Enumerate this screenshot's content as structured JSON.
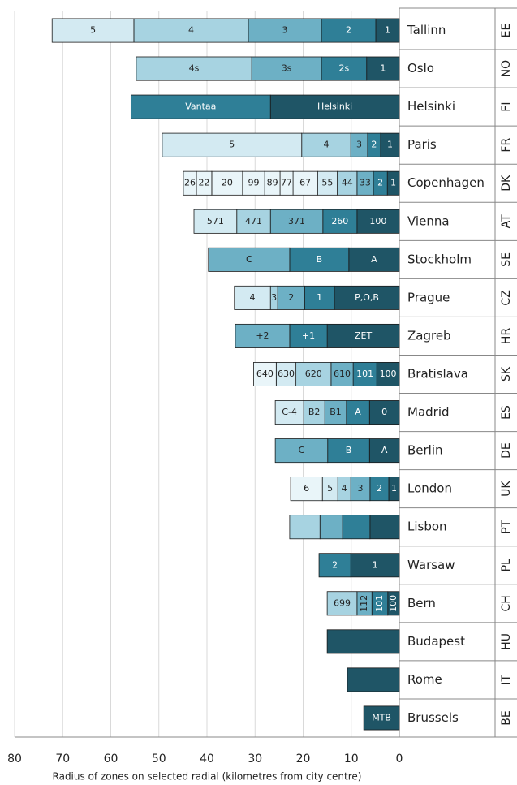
{
  "chart_data": {
    "type": "bar",
    "orientation": "horizontal-left",
    "xlabel": "Radius of zones on selected radial (kilometres from city centre)",
    "xlim": [
      0,
      80
    ],
    "xticks": [
      0,
      10,
      20,
      30,
      40,
      50,
      60,
      70,
      80
    ],
    "grid": true,
    "colors": [
      "#1f5566",
      "#2f7f97",
      "#6db0c5",
      "#a7d3e1",
      "#d3eaf2",
      "#e9f5f9"
    ],
    "rows": [
      {
        "name": "Tallinn",
        "code": "EE",
        "segments": [
          {
            "label": "1",
            "value": 4.9
          },
          {
            "label": "2",
            "value": 11.3
          },
          {
            "label": "3",
            "value": 15.2
          },
          {
            "label": "4",
            "value": 23.8
          },
          {
            "label": "5",
            "value": 17
          }
        ]
      },
      {
        "name": "Oslo",
        "code": "NO",
        "segments": [
          {
            "label": "1",
            "value": 6.8
          },
          {
            "label": "2s",
            "value": 9.4
          },
          {
            "label": "3s",
            "value": 14.5
          },
          {
            "label": "4s",
            "value": 24
          }
        ]
      },
      {
        "name": "Helsinki",
        "code": "FI",
        "segments": [
          {
            "label": "Helsinki",
            "value": 26.8
          },
          {
            "label": "Vantaa",
            "value": 29
          }
        ]
      },
      {
        "name": "Paris",
        "code": "FR",
        "segments": [
          {
            "label": "1",
            "value": 3.9
          },
          {
            "label": "2",
            "value": 2.7
          },
          {
            "label": "3",
            "value": 3.5
          },
          {
            "label": "4",
            "value": 10.2
          },
          {
            "label": "5",
            "value": 29
          }
        ]
      },
      {
        "name": "Copenhagen",
        "code": "DK",
        "segments": [
          {
            "label": "1",
            "value": 2.5
          },
          {
            "label": "2",
            "value": 2.9
          },
          {
            "label": "33",
            "value": 3.4
          },
          {
            "label": "44",
            "value": 4.1
          },
          {
            "label": "55",
            "value": 4.1
          },
          {
            "label": "67",
            "value": 5.1
          },
          {
            "label": "77",
            "value": 2.7
          },
          {
            "label": "89",
            "value": 3.2
          },
          {
            "label": "99",
            "value": 4.6
          },
          {
            "label": "20",
            "value": 6.4
          },
          {
            "label": "22",
            "value": 3.2
          },
          {
            "label": "26",
            "value": 2.7
          }
        ]
      },
      {
        "name": "Vienna",
        "code": "AT",
        "segments": [
          {
            "label": "100",
            "value": 8.8
          },
          {
            "label": "260",
            "value": 7.1
          },
          {
            "label": "371",
            "value": 10.9
          },
          {
            "label": "471",
            "value": 7
          },
          {
            "label": "571",
            "value": 8.9
          }
        ]
      },
      {
        "name": "Stockholm",
        "code": "SE",
        "segments": [
          {
            "label": "A",
            "value": 10.5
          },
          {
            "label": "B",
            "value": 12.3
          },
          {
            "label": "C",
            "value": 16.9
          }
        ]
      },
      {
        "name": "Prague",
        "code": "CZ",
        "segments": [
          {
            "label": "P,O,B",
            "value": 13.5
          },
          {
            "label": "1",
            "value": 6.2
          },
          {
            "label": "2",
            "value": 5.6
          },
          {
            "label": "3",
            "value": 1.5
          },
          {
            "label": "4",
            "value": 7.5
          }
        ]
      },
      {
        "name": "Zagreb",
        "code": "HR",
        "segments": [
          {
            "label": "ZET",
            "value": 15
          },
          {
            "label": "+1",
            "value": 7.8
          },
          {
            "label": "+2",
            "value": 11.3
          }
        ]
      },
      {
        "name": "Bratislava",
        "code": "SK",
        "segments": [
          {
            "label": "100",
            "value": 4.7
          },
          {
            "label": "101",
            "value": 4.9
          },
          {
            "label": "610",
            "value": 4.6
          },
          {
            "label": "620",
            "value": 7.3
          },
          {
            "label": "630",
            "value": 4.1
          },
          {
            "label": "640",
            "value": 4.7
          }
        ]
      },
      {
        "name": "Madrid",
        "code": "ES",
        "segments": [
          {
            "label": "0",
            "value": 6.2
          },
          {
            "label": "A",
            "value": 4.8
          },
          {
            "label": "B1",
            "value": 4.5
          },
          {
            "label": "B2",
            "value": 4.4
          },
          {
            "label": "C-4",
            "value": 5.9
          }
        ]
      },
      {
        "name": "Berlin",
        "code": "DE",
        "segments": [
          {
            "label": "A",
            "value": 6.2
          },
          {
            "label": "B",
            "value": 8.7
          },
          {
            "label": "C",
            "value": 10.9
          }
        ]
      },
      {
        "name": "London",
        "code": "UK",
        "segments": [
          {
            "label": "1",
            "value": 2.2
          },
          {
            "label": "2",
            "value": 3.9
          },
          {
            "label": "3",
            "value": 4
          },
          {
            "label": "4",
            "value": 2.7
          },
          {
            "label": "5",
            "value": 3.2
          },
          {
            "label": "6",
            "value": 6.6
          }
        ]
      },
      {
        "name": "Lisbon",
        "code": "PT",
        "segments": [
          {
            "label": null,
            "value": 6.1
          },
          {
            "label": null,
            "value": 5.7
          },
          {
            "label": null,
            "value": 4.7
          },
          {
            "label": null,
            "value": 6.3
          }
        ]
      },
      {
        "name": "Warsaw",
        "code": "PL",
        "segments": [
          {
            "label": "1",
            "value": 10.1
          },
          {
            "label": "2",
            "value": 6.6
          }
        ]
      },
      {
        "name": "Bern",
        "code": "CH",
        "segments": [
          {
            "label": "100",
            "value": 2.4
          },
          {
            "label": "101",
            "value": 3.3
          },
          {
            "label": "112",
            "value": 3.1
          },
          {
            "label": "699",
            "value": 6.2
          }
        ]
      },
      {
        "name": "Budapest",
        "code": "HU",
        "segments": [
          {
            "label": null,
            "value": 15
          }
        ]
      },
      {
        "name": "Rome",
        "code": "IT",
        "segments": [
          {
            "label": null,
            "value": 10.8
          }
        ]
      },
      {
        "name": "Brussels",
        "code": "BE",
        "segments": [
          {
            "label": "MTB",
            "value": 7.4
          }
        ]
      }
    ]
  }
}
